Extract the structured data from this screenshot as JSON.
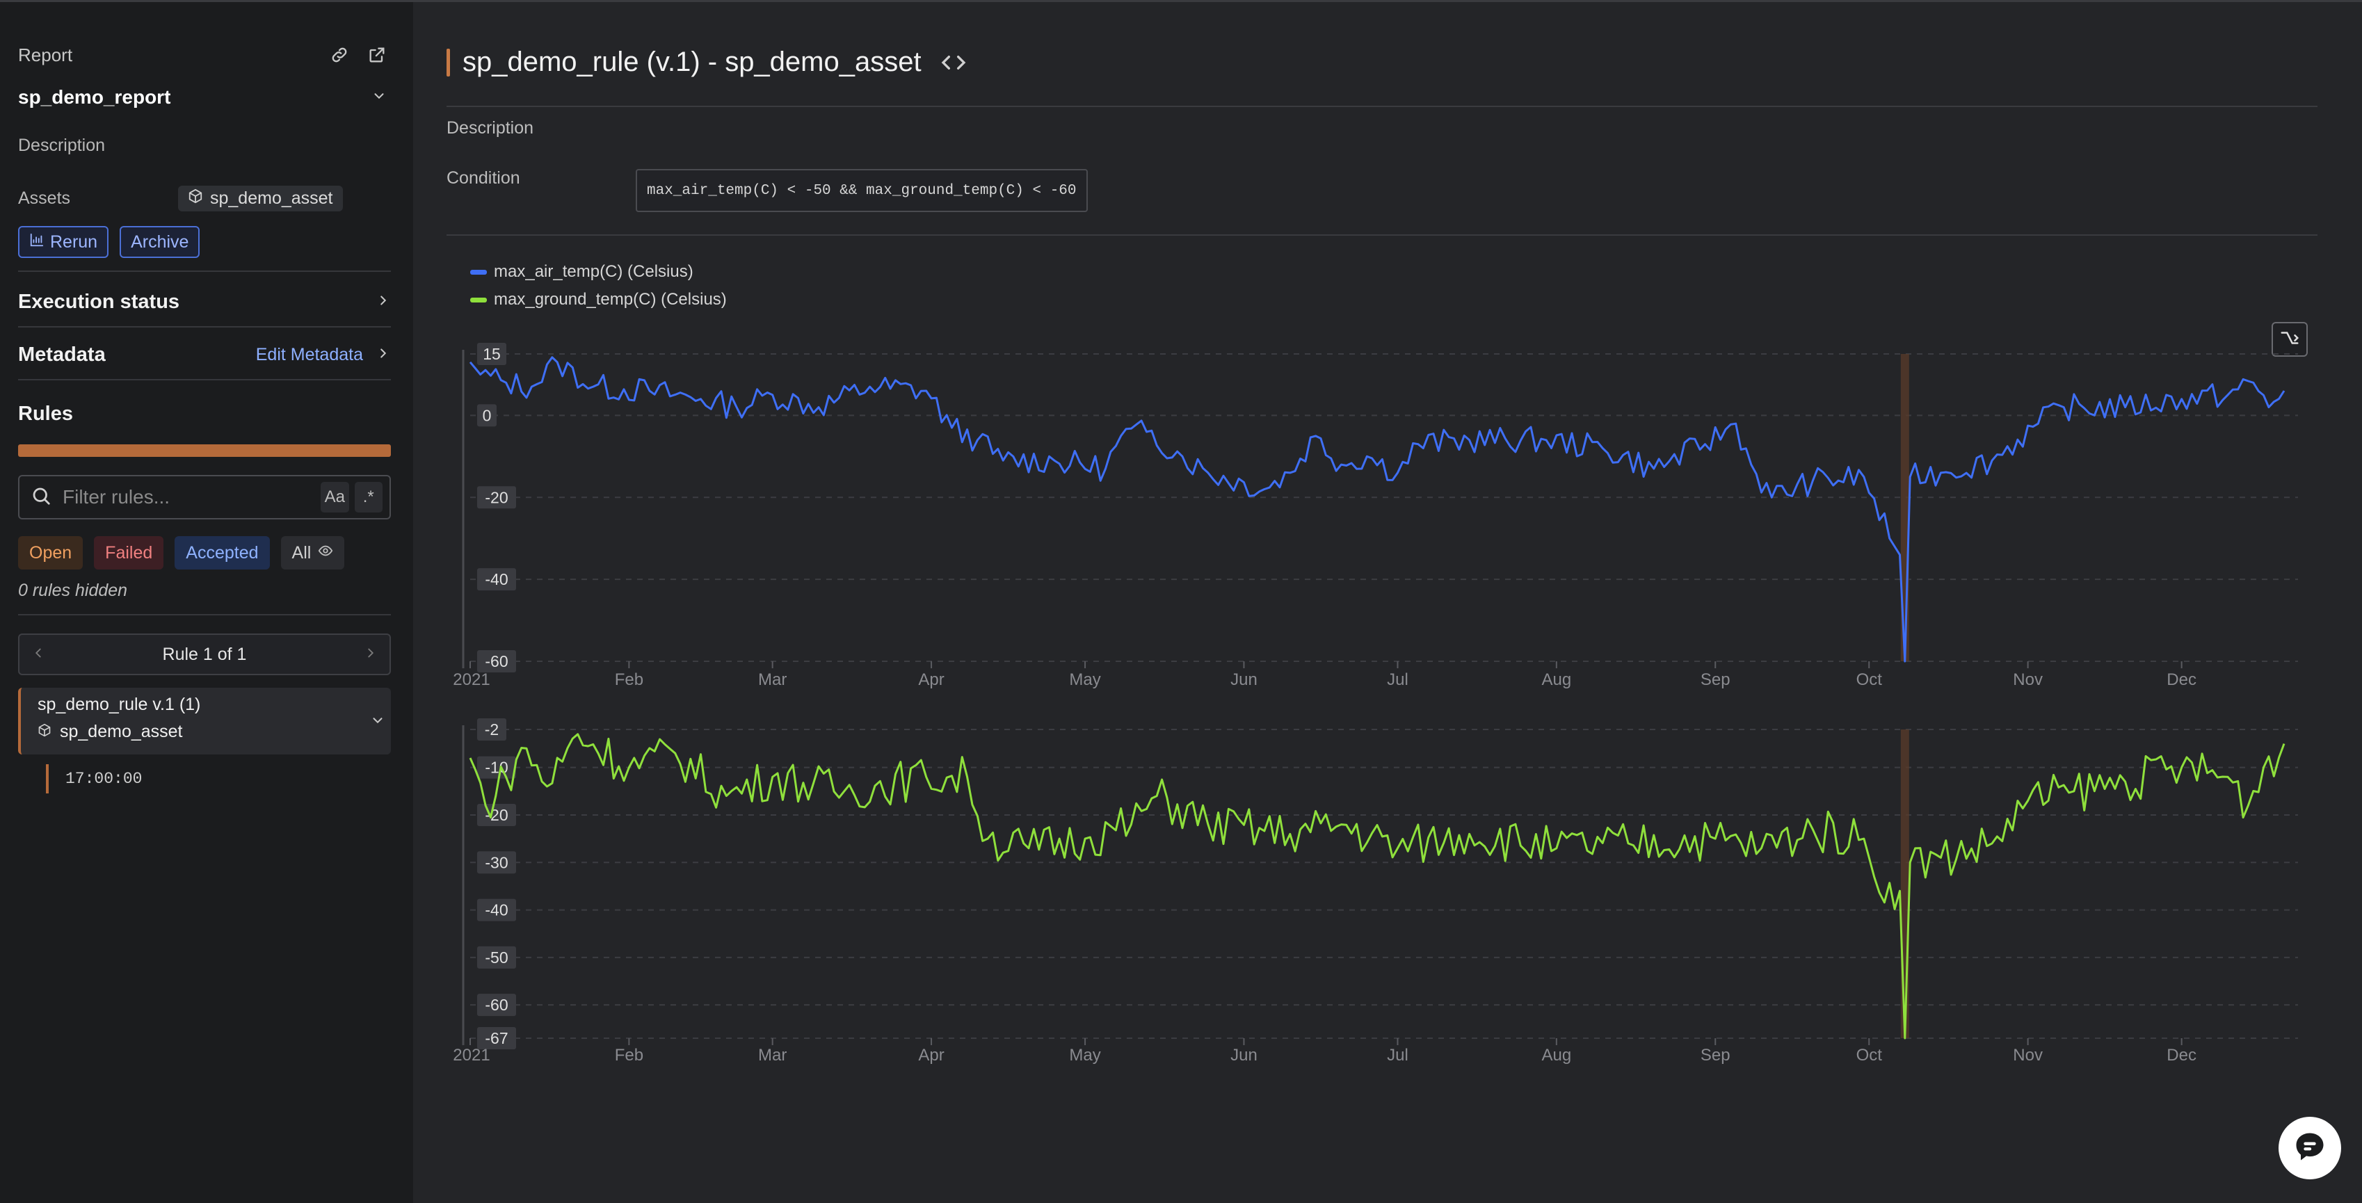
{
  "sidebar": {
    "report_label": "Report",
    "report_name": "sp_demo_report",
    "description_label": "Description",
    "assets_label": "Assets",
    "asset_name": "sp_demo_asset",
    "rerun_label": "Rerun",
    "archive_label": "Archive",
    "execution_status_label": "Execution status",
    "metadata_label": "Metadata",
    "edit_metadata_label": "Edit Metadata",
    "rules_label": "Rules",
    "filter_placeholder": "Filter rules...",
    "case_toggle": "Aa",
    "regex_toggle": ".*",
    "filters": {
      "open": "Open",
      "failed": "Failed",
      "accepted": "Accepted",
      "all": "All"
    },
    "hidden_note": "0 rules hidden",
    "pager_label": "Rule 1 of 1",
    "rule": {
      "name": "sp_demo_rule v.1 (1)",
      "asset": "sp_demo_asset",
      "time": "17:00:00"
    },
    "progress_fraction": 1.0
  },
  "main": {
    "title": "sp_demo_rule (v.1) - sp_demo_asset",
    "description_label": "Description",
    "condition_label": "Condition",
    "condition": "max_air_temp(C) < -50 && max_ground_temp(C) < -60"
  },
  "colors": {
    "air": "#3f6ff5",
    "ground": "#8fe03c",
    "accent": "#b56a3a",
    "highlight": "#5a3b2a"
  },
  "icons": [
    "link-icon",
    "external-link-icon",
    "chevron-down-icon",
    "cube-icon",
    "chart-icon",
    "chevron-right-icon",
    "search-icon",
    "eye-icon",
    "code-icon",
    "reset-zoom-icon",
    "chat-icon"
  ],
  "chart_data": [
    {
      "type": "line",
      "series": [
        {
          "name": "max_air_temp(C) (Celsius)",
          "color": "#3f6ff5"
        }
      ],
      "ylim": [
        -60,
        15
      ],
      "yticks": [
        15,
        0,
        -20,
        -40,
        -60
      ],
      "xticks": [
        "2021",
        "Feb",
        "Mar",
        "Apr",
        "May",
        "Jun",
        "Jul",
        "Aug",
        "Sep",
        "Oct",
        "Nov",
        "Dec"
      ],
      "x_range": [
        "2021-01-01",
        "2021-12-21"
      ],
      "highlight_date": "2021-10-08",
      "keypoints": [
        [
          "2021-01-01",
          13
        ],
        [
          "2021-01-03",
          10
        ],
        [
          "2021-01-08",
          8
        ],
        [
          "2021-01-13",
          7
        ],
        [
          "2021-01-18",
          13
        ],
        [
          "2021-01-25",
          7
        ],
        [
          "2021-02-05",
          6
        ],
        [
          "2021-02-15",
          4
        ],
        [
          "2021-02-22",
          2
        ],
        [
          "2021-03-01",
          5
        ],
        [
          "2021-03-10",
          2
        ],
        [
          "2021-03-20",
          7
        ],
        [
          "2021-03-31",
          6
        ],
        [
          "2021-04-05",
          -3
        ],
        [
          "2021-04-10",
          -6
        ],
        [
          "2021-04-15",
          -11
        ],
        [
          "2021-04-25",
          -11
        ],
        [
          "2021-05-05",
          -13
        ],
        [
          "2021-05-08",
          -5
        ],
        [
          "2021-05-13",
          -4
        ],
        [
          "2021-05-20",
          -10
        ],
        [
          "2021-05-25",
          -14
        ],
        [
          "2021-06-05",
          -18
        ],
        [
          "2021-06-10",
          -14
        ],
        [
          "2021-06-15",
          -5
        ],
        [
          "2021-06-20",
          -12
        ],
        [
          "2021-06-25",
          -10
        ],
        [
          "2021-07-01",
          -14
        ],
        [
          "2021-07-05",
          -7
        ],
        [
          "2021-07-15",
          -6
        ],
        [
          "2021-07-30",
          -6
        ],
        [
          "2021-08-10",
          -8
        ],
        [
          "2021-08-20",
          -13
        ],
        [
          "2021-08-30",
          -7
        ],
        [
          "2021-09-05",
          -2
        ],
        [
          "2021-09-08",
          -12
        ],
        [
          "2021-09-12",
          -20
        ],
        [
          "2021-09-20",
          -16
        ],
        [
          "2021-09-30",
          -15
        ],
        [
          "2021-10-05",
          -30
        ],
        [
          "2021-10-07",
          -34
        ],
        [
          "2021-10-08",
          -60
        ],
        [
          "2021-10-09",
          -15
        ],
        [
          "2021-10-15",
          -14
        ],
        [
          "2021-10-25",
          -11
        ],
        [
          "2021-11-03",
          -2
        ],
        [
          "2021-11-08",
          2
        ],
        [
          "2021-11-20",
          2
        ],
        [
          "2021-12-01",
          4
        ],
        [
          "2021-12-10",
          5
        ],
        [
          "2021-12-15",
          8
        ],
        [
          "2021-12-18",
          2
        ],
        [
          "2021-12-21",
          6
        ]
      ]
    },
    {
      "type": "line",
      "series": [
        {
          "name": "max_ground_temp(C) (Celsius)",
          "color": "#8fe03c"
        }
      ],
      "ylim": [
        -67,
        -2
      ],
      "yticks": [
        -2,
        -10,
        -20,
        -30,
        -40,
        -50,
        -60,
        -67
      ],
      "xticks": [
        "2021",
        "Feb",
        "Mar",
        "Apr",
        "May",
        "Jun",
        "Jul",
        "Aug",
        "Sep",
        "Oct",
        "Nov",
        "Dec"
      ],
      "x_range": [
        "2021-01-01",
        "2021-12-21"
      ],
      "highlight_date": "2021-10-08",
      "keypoints": [
        [
          "2021-01-01",
          -8
        ],
        [
          "2021-01-04",
          -18
        ],
        [
          "2021-01-08",
          -12
        ],
        [
          "2021-01-12",
          -6
        ],
        [
          "2021-01-16",
          -14
        ],
        [
          "2021-01-22",
          -3
        ],
        [
          "2021-02-01",
          -10
        ],
        [
          "2021-02-10",
          -7
        ],
        [
          "2021-02-20",
          -16
        ],
        [
          "2021-03-01",
          -12
        ],
        [
          "2021-03-15",
          -15
        ],
        [
          "2021-03-31",
          -12
        ],
        [
          "2021-04-08",
          -12
        ],
        [
          "2021-04-12",
          -25
        ],
        [
          "2021-04-20",
          -27
        ],
        [
          "2021-05-01",
          -25
        ],
        [
          "2021-05-10",
          -22
        ],
        [
          "2021-05-15",
          -16
        ],
        [
          "2021-05-25",
          -22
        ],
        [
          "2021-06-10",
          -24
        ],
        [
          "2021-06-20",
          -22
        ],
        [
          "2021-07-01",
          -27
        ],
        [
          "2021-07-15",
          -24
        ],
        [
          "2021-08-01",
          -27
        ],
        [
          "2021-08-15",
          -26
        ],
        [
          "2021-09-01",
          -25
        ],
        [
          "2021-09-10",
          -27
        ],
        [
          "2021-09-20",
          -23
        ],
        [
          "2021-09-30",
          -25
        ],
        [
          "2021-10-02",
          -33
        ],
        [
          "2021-10-07",
          -36
        ],
        [
          "2021-10-08",
          -67
        ],
        [
          "2021-10-09",
          -30
        ],
        [
          "2021-10-15",
          -29
        ],
        [
          "2021-10-25",
          -26
        ],
        [
          "2021-11-01",
          -17
        ],
        [
          "2021-11-10",
          -15
        ],
        [
          "2021-11-20",
          -13
        ],
        [
          "2021-12-01",
          -10
        ],
        [
          "2021-12-10",
          -12
        ],
        [
          "2021-12-14",
          -18
        ],
        [
          "2021-12-17",
          -10
        ],
        [
          "2021-12-21",
          -5
        ]
      ]
    }
  ]
}
